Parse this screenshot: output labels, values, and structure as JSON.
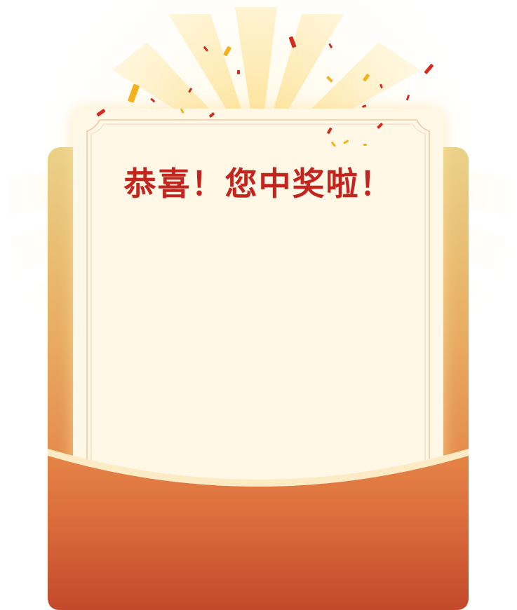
{
  "dialog": {
    "title": "恭喜！您中奖啦！"
  },
  "colors": {
    "title": "#c3241d",
    "card": "#fff8e6",
    "envelope_top": "#ead289",
    "envelope_bottom": "#c2482a",
    "ray": "#fde9a6",
    "confetti_red": "#d52a1f",
    "confetti_gold": "#f3b21d"
  }
}
